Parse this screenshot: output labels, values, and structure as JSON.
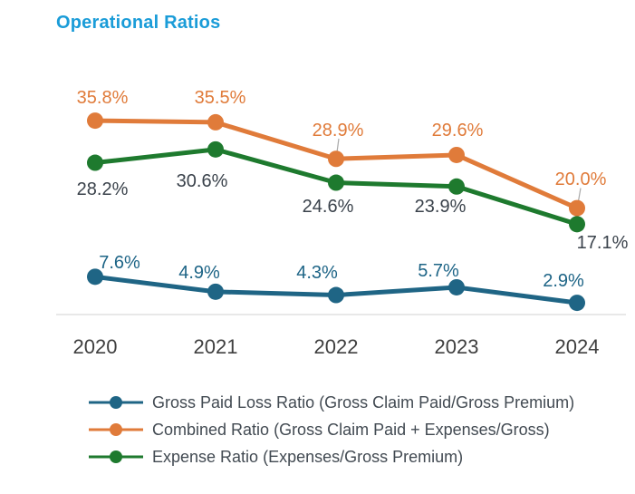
{
  "title": "Operational Ratios",
  "colors": {
    "title": "#1a9cd8",
    "axis_line": "#d9d9d9",
    "leader_line": "#a8a8a8",
    "year_label": "#3f3f3f",
    "dark_value_label": "#3a424b",
    "legend_text": "#424a52"
  },
  "chart_data": {
    "type": "line",
    "title": "Operational Ratios",
    "x_categories": [
      "2020",
      "2021",
      "2022",
      "2023",
      "2024"
    ],
    "series": [
      {
        "id": "combined",
        "name": "Combined Ratio (Gross Claim Paid + Expenses/Gross)",
        "color": "#e07b3a",
        "label_color": "#e07b3a",
        "values": [
          35.8,
          35.5,
          28.9,
          29.6,
          20.0
        ],
        "labels": [
          "35.8%",
          "35.5%",
          "28.9%",
          "29.6%",
          "20.0%"
        ]
      },
      {
        "id": "expense",
        "name": "Expense Ratio (Expenses/Gross Premium)",
        "color": "#1e7a2e",
        "label_color": "#3a424b",
        "values": [
          28.2,
          30.6,
          24.6,
          23.9,
          17.1
        ],
        "labels": [
          "28.2%",
          "30.6%",
          "24.6%",
          "23.9%",
          "17.1%"
        ]
      },
      {
        "id": "loss",
        "name": "Gross Paid Loss Ratio (Gross Claim Paid/Gross Premium)",
        "color": "#1f6585",
        "label_color": "#1d6486",
        "values": [
          7.6,
          4.9,
          4.3,
          5.7,
          2.9
        ],
        "labels": [
          "7.6%",
          "4.9%",
          "4.3%",
          "5.7%",
          "2.9%"
        ]
      }
    ],
    "ylim": [
      0,
      40
    ],
    "grid": false,
    "legend_position": "bottom",
    "xlabel": "",
    "ylabel": ""
  },
  "legend": {
    "items": [
      {
        "series": "loss",
        "color": "#1f6585",
        "label": "Gross Paid Loss Ratio (Gross Claim Paid/Gross Premium)"
      },
      {
        "series": "combined",
        "color": "#e07b3a",
        "label": "Combined Ratio (Gross Claim Paid + Expenses/Gross)"
      },
      {
        "series": "expense",
        "color": "#1e7a2e",
        "label": "Expense Ratio (Expenses/Gross Premium)"
      }
    ]
  }
}
